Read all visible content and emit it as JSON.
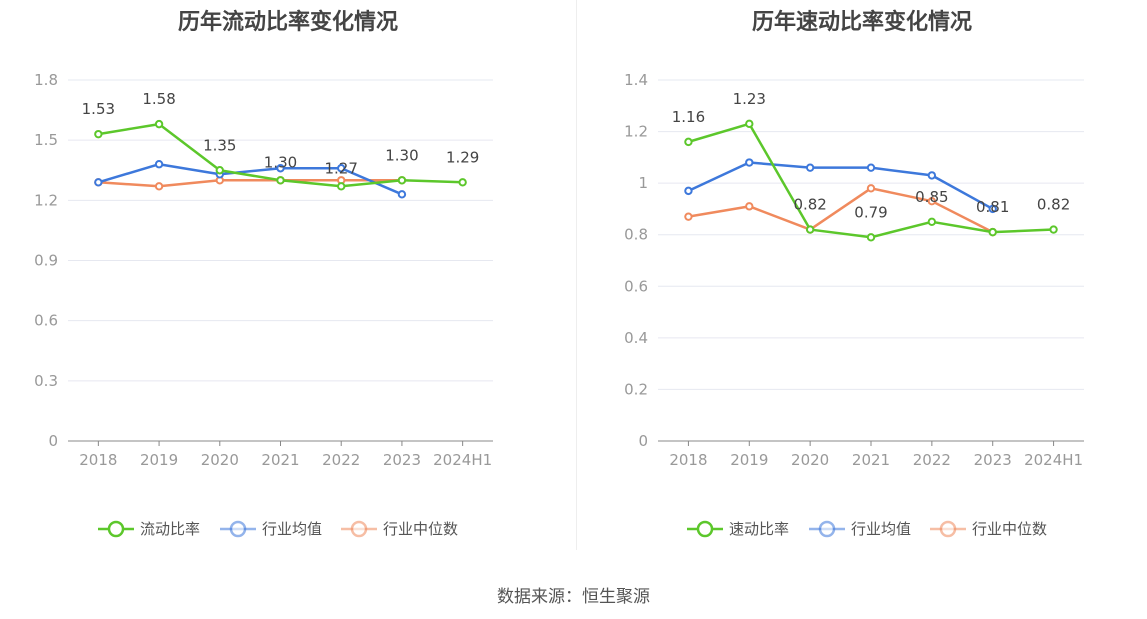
{
  "source_text": "数据来源：恒生聚源",
  "chart_data": [
    {
      "type": "line",
      "title": "历年流动比率变化情况",
      "categories": [
        "2018",
        "2019",
        "2020",
        "2021",
        "2022",
        "2023",
        "2024H1"
      ],
      "ylim": [
        0,
        1.8
      ],
      "yticks": [
        "0",
        "0.3",
        "0.6",
        "0.9",
        "1.2",
        "1.5",
        "1.8"
      ],
      "grid": true,
      "legend_position": "bottom",
      "series": [
        {
          "name": "流动比率",
          "color": "#5cc72b",
          "values": [
            1.53,
            1.58,
            1.35,
            1.3,
            1.27,
            1.3,
            1.29
          ],
          "labels": [
            "1.53",
            "1.58",
            "1.35",
            "1.30",
            "1.27",
            "1.30",
            "1.29"
          ]
        },
        {
          "name": "行业均值",
          "color": "#3d78db",
          "values": [
            1.29,
            1.38,
            1.33,
            1.36,
            1.36,
            1.23,
            null
          ]
        },
        {
          "name": "行业中位数",
          "color": "#f08a5d",
          "values": [
            1.29,
            1.27,
            1.3,
            1.3,
            1.3,
            1.3,
            null
          ]
        }
      ]
    },
    {
      "type": "line",
      "title": "历年速动比率变化情况",
      "categories": [
        "2018",
        "2019",
        "2020",
        "2021",
        "2022",
        "2023",
        "2024H1"
      ],
      "ylim": [
        0,
        1.4
      ],
      "yticks": [
        "0",
        "0.2",
        "0.4",
        "0.6",
        "0.8",
        "1",
        "1.2",
        "1.4"
      ],
      "grid": true,
      "legend_position": "bottom",
      "series": [
        {
          "name": "速动比率",
          "color": "#5cc72b",
          "values": [
            1.16,
            1.23,
            0.82,
            0.79,
            0.85,
            0.81,
            0.82
          ],
          "labels": [
            "1.16",
            "1.23",
            "0.82",
            "0.79",
            "0.85",
            "0.81",
            "0.82"
          ]
        },
        {
          "name": "行业均值",
          "color": "#3d78db",
          "values": [
            0.97,
            1.08,
            1.06,
            1.06,
            1.03,
            0.9,
            null
          ]
        },
        {
          "name": "行业中位数",
          "color": "#f08a5d",
          "values": [
            0.87,
            0.91,
            0.82,
            0.98,
            0.93,
            0.81,
            null
          ]
        }
      ]
    }
  ]
}
